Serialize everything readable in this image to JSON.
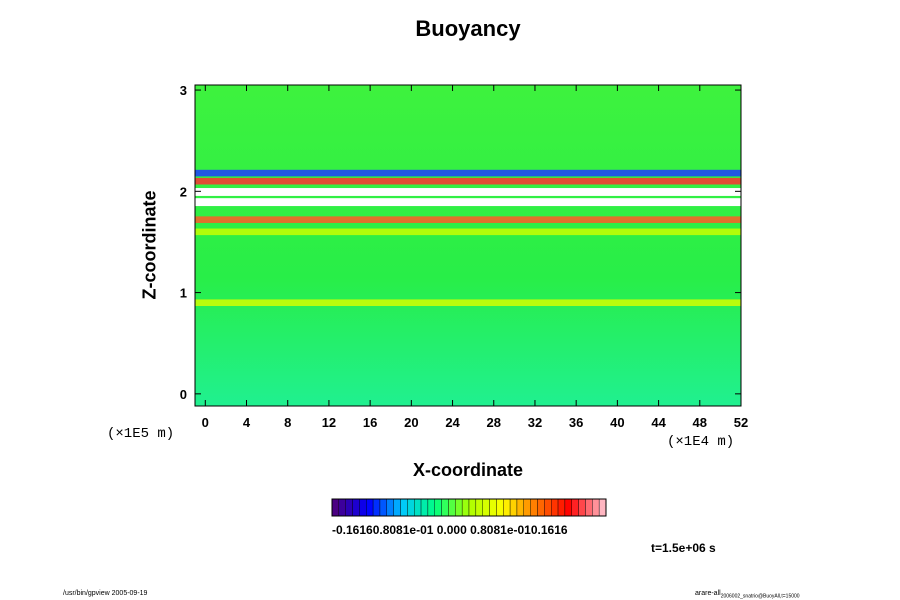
{
  "chart_data": {
    "type": "heatmap",
    "title": "Buoyancy",
    "xlabel": "X-coordinate",
    "ylabel": "Z-coordinate",
    "x_unit": "(×1E4 m)",
    "y_unit": "(×1E5 m)",
    "xlim": [
      -1,
      52
    ],
    "ylim": [
      -0.12,
      3.05
    ],
    "x_ticks": [
      "0",
      "4",
      "8",
      "12",
      "16",
      "20",
      "24",
      "28",
      "32",
      "36",
      "40",
      "44",
      "48",
      "52"
    ],
    "y_ticks": [
      "0",
      "1",
      "2",
      "3"
    ],
    "colorbar": {
      "range": [
        -0.1616,
        0.1616
      ],
      "labels": "-0.16160.8081e-01 0.000 0.8081e-010.1616",
      "colors": [
        "#4b0082",
        "#0000ff",
        "#00c8ff",
        "#00ff80",
        "#aaff00",
        "#ffff00",
        "#ff7800",
        "#ff0000",
        "#ffb6c1"
      ]
    },
    "time_label": "t=1.5e+06 s",
    "bands": [
      {
        "z": 2.18,
        "value": "negative",
        "color": "#1e3cff"
      },
      {
        "z": 2.1,
        "value": "positive",
        "color": "#ff3030"
      },
      {
        "z": 2.0,
        "value": "saturated",
        "color": "#ffffff"
      },
      {
        "z": 1.9,
        "value": "saturated",
        "color": "#ffffff"
      },
      {
        "z": 1.72,
        "value": "positive",
        "color": "#ff5a28"
      },
      {
        "z": 1.6,
        "value": "slightly positive",
        "color": "#c8ff00"
      },
      {
        "z": 0.9,
        "value": "slightly positive",
        "color": "#d2ff00"
      }
    ],
    "background_color": "#28f028"
  },
  "footer": {
    "left": "/usr/bin/gpview 2005-09-19",
    "right_main": "arare-all",
    "right_sub": "2006002_snatrio@BuoyAll,t=15000"
  }
}
